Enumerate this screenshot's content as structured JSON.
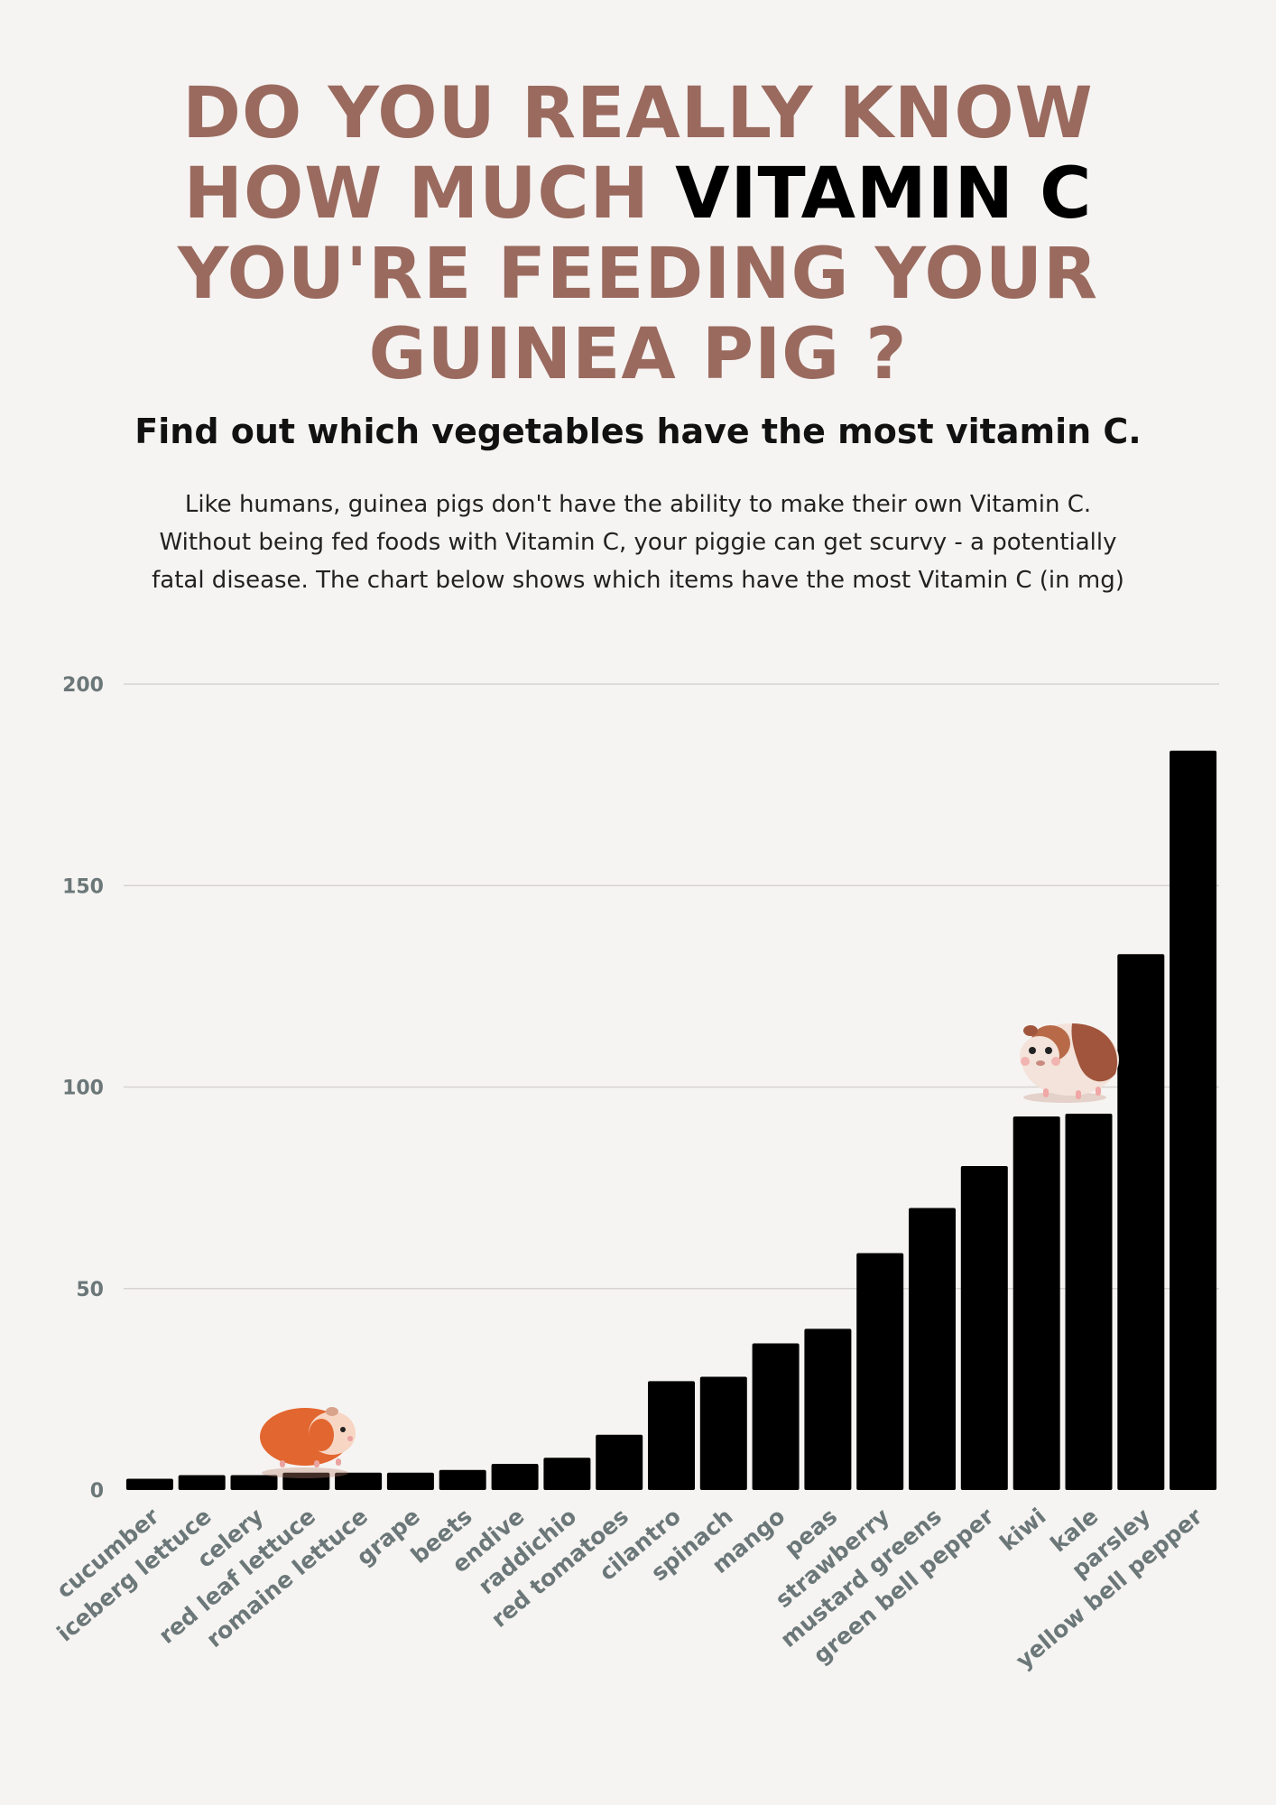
{
  "header": {
    "title_lines": [
      "DO YOU REALLY KNOW",
      "YOU'RE FEEDING YOUR",
      "GUINEA PIG ?"
    ],
    "title_line2_prefix": "HOW MUCH ",
    "title_line2_highlight": "VITAMIN C",
    "subtitle": "Find out which vegetables have the most vitamin C.",
    "intro_lines": [
      "Like humans, guinea pigs don't have the ability to make their own Vitamin C.",
      "Without being fed foods with Vitamin C, your piggie can get scurvy - a potentially",
      "fatal disease.  The chart below shows which items have the most Vitamin C (in mg)"
    ]
  },
  "colors": {
    "title": "#9a6a5f",
    "highlight": "#000000",
    "bar": "#000000",
    "axis_text": "#6b7778",
    "grid": "#d6d3d1",
    "background": "#f6f4f2"
  },
  "icons": [
    "guinea-pig-orange-icon",
    "guinea-pig-brown-icon"
  ],
  "chart_data": {
    "type": "bar",
    "categories": [
      "cucumber",
      "iceberg lettuce",
      "celery",
      "red leaf lettuce",
      "romaine lettuce",
      "grape",
      "beets",
      "endive",
      "raddichio",
      "red tomatoes",
      "cilantro",
      "spinach",
      "mango",
      "peas",
      "strawberry",
      "mustard greens",
      "green bell pepper",
      "kiwi",
      "kale",
      "parsley",
      "yellow bell pepper"
    ],
    "values": [
      2.8,
      3.7,
      3.7,
      4.3,
      4.3,
      4.3,
      5.0,
      6.5,
      8.0,
      13.7,
      27.0,
      28.1,
      36.4,
      40.0,
      58.8,
      70.0,
      80.4,
      92.7,
      93.4,
      133.0,
      183.5
    ],
    "yticks": [
      0,
      50,
      100,
      150,
      200
    ],
    "ylim": [
      0,
      200
    ],
    "grid": true,
    "legend": "none"
  }
}
